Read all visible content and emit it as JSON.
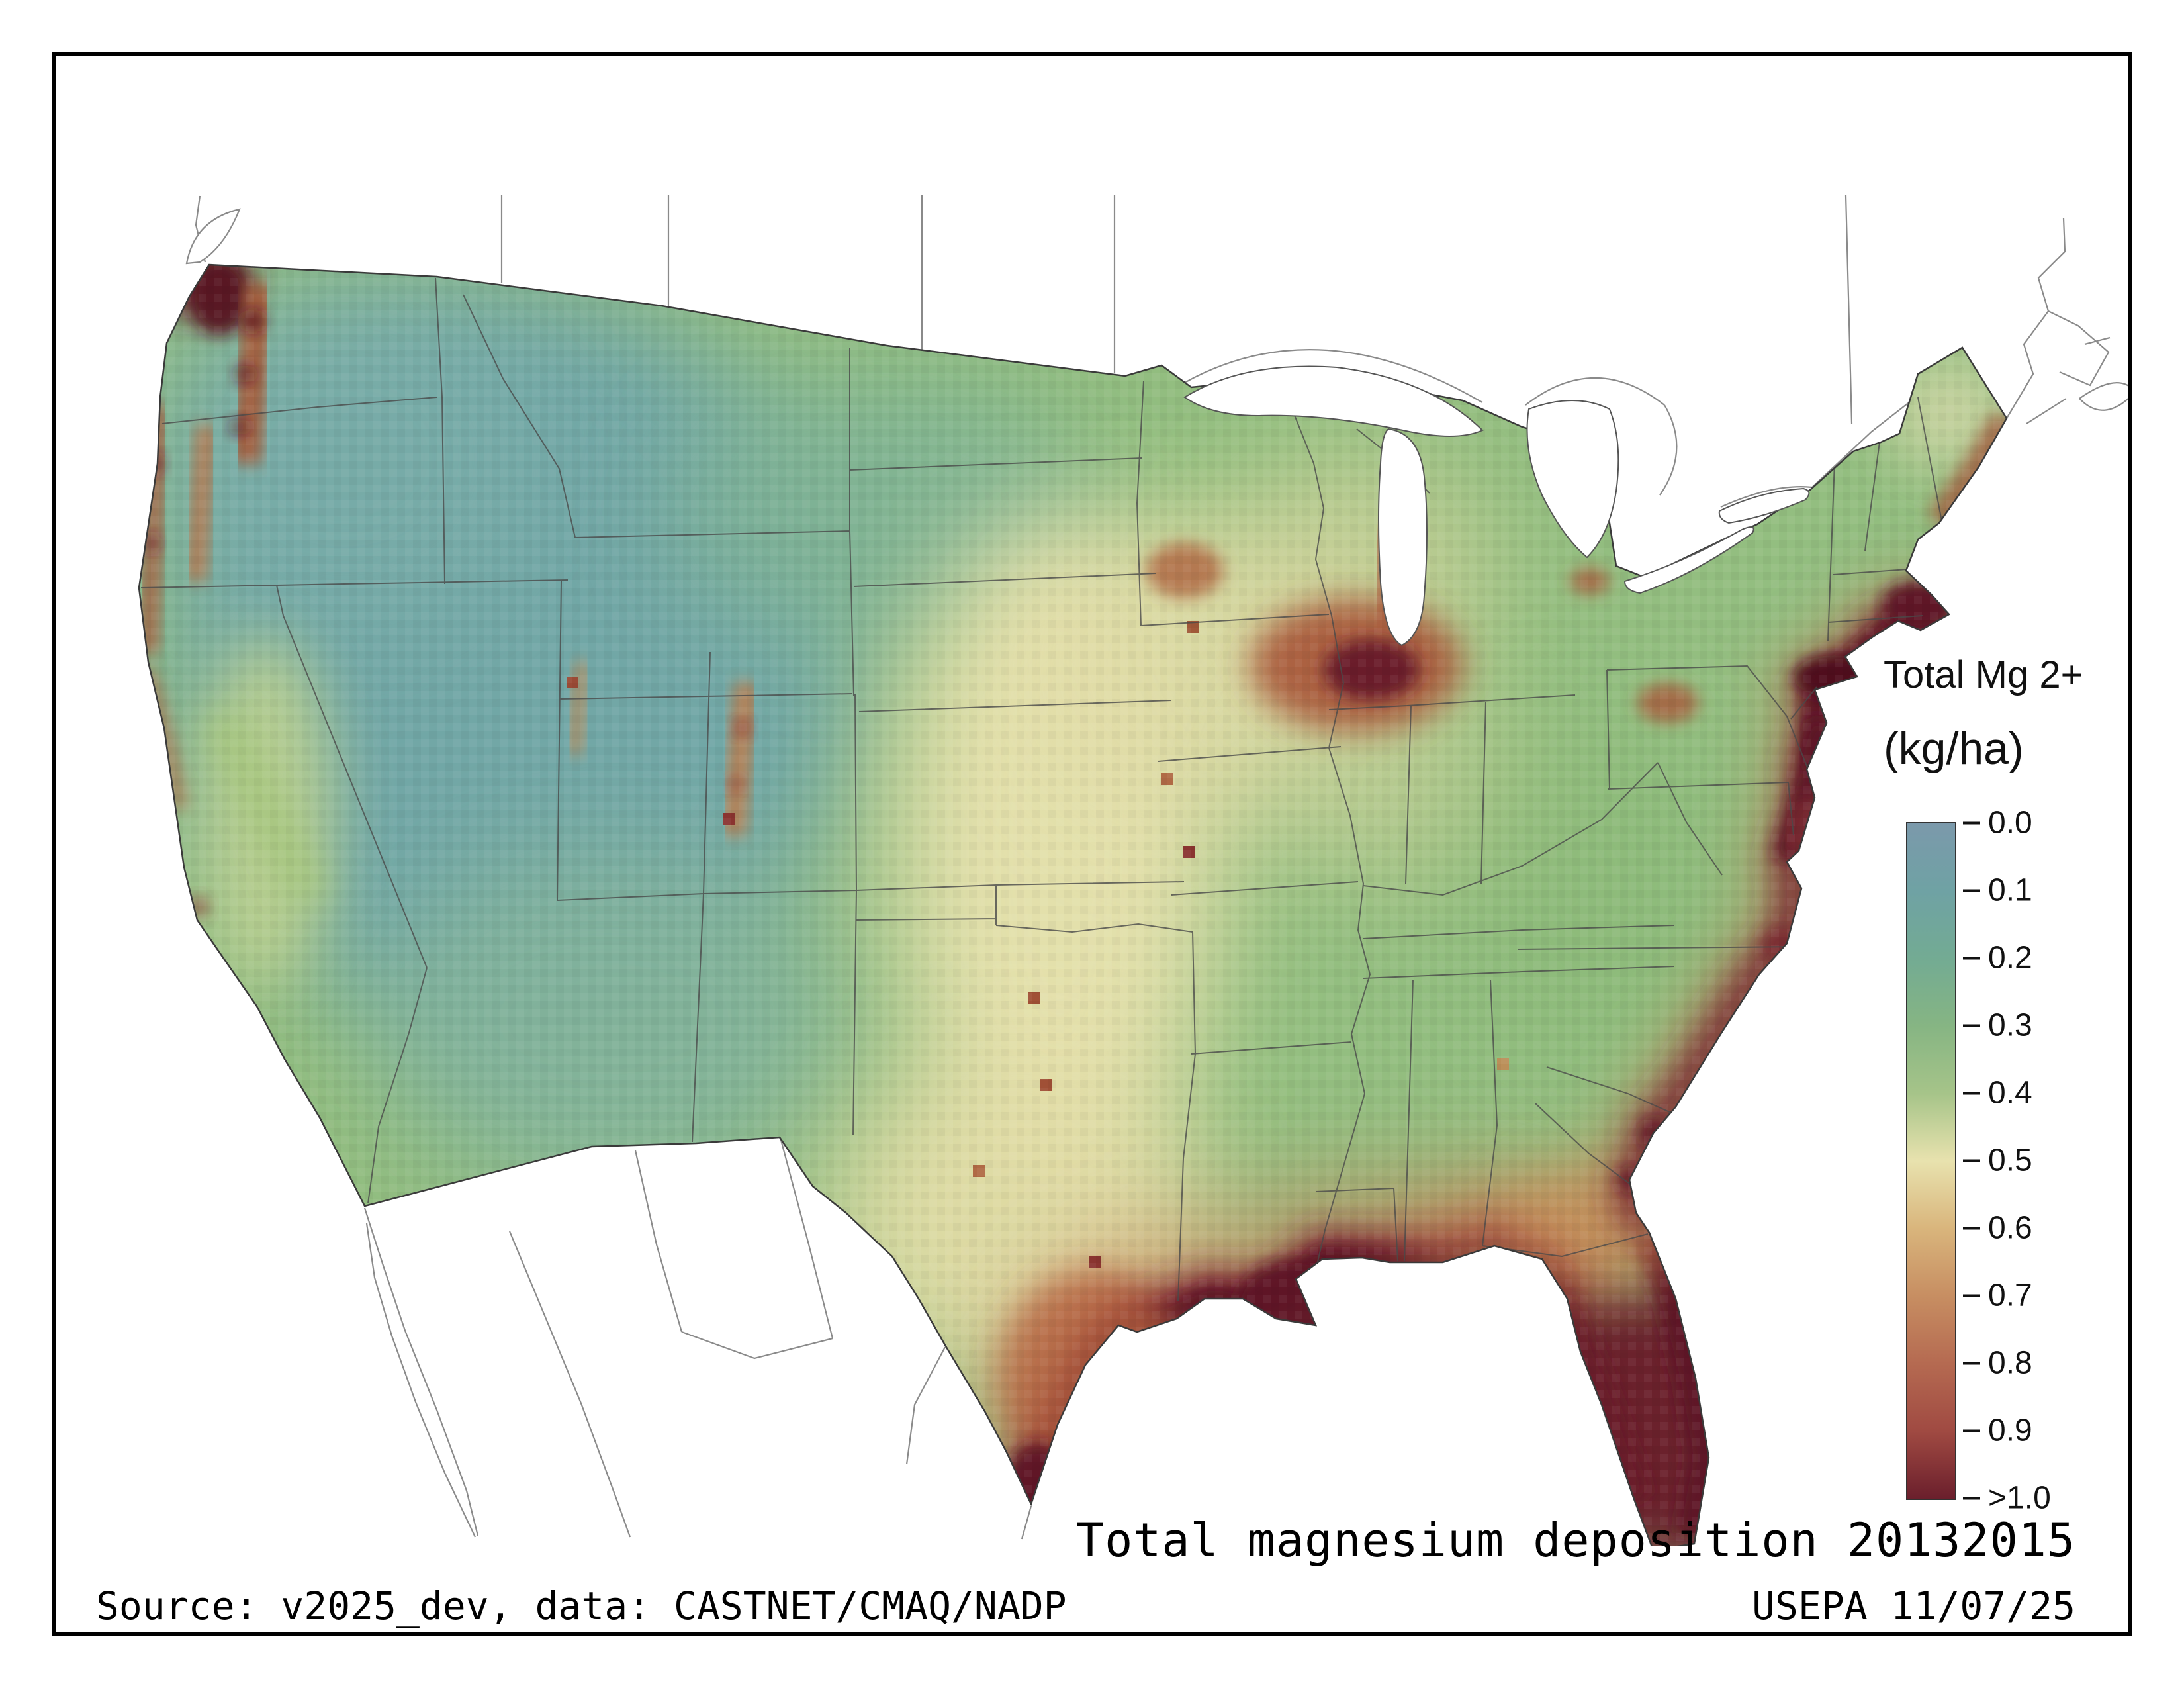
{
  "figure": {
    "caption": "Total magnesium deposition 20132015",
    "source_line": "Source: v2025_dev, data: CASTNET/CMAQ/NADP",
    "credit_line": "USEPA 11/07/25"
  },
  "legend": {
    "title": "Total Mg 2+",
    "units": "(kg/ha)",
    "ticks": [
      "0.0",
      "0.1",
      "0.2",
      "0.3",
      "0.4",
      "0.5",
      "0.6",
      "0.7",
      "0.8",
      "0.9",
      ">1.0"
    ],
    "gradient_colors": [
      "#7b99ab",
      "#6fa2a4",
      "#73ab93",
      "#86b583",
      "#a6c489",
      "#e8e2ae",
      "#d9b57c",
      "#c78e62",
      "#b56a51",
      "#a04a42",
      "#6b1f2c"
    ]
  },
  "map": {
    "region": "Contiguous United States",
    "kind": "gridded deposition raster",
    "value_range": "0.0 to >1.0 kg/ha"
  }
}
